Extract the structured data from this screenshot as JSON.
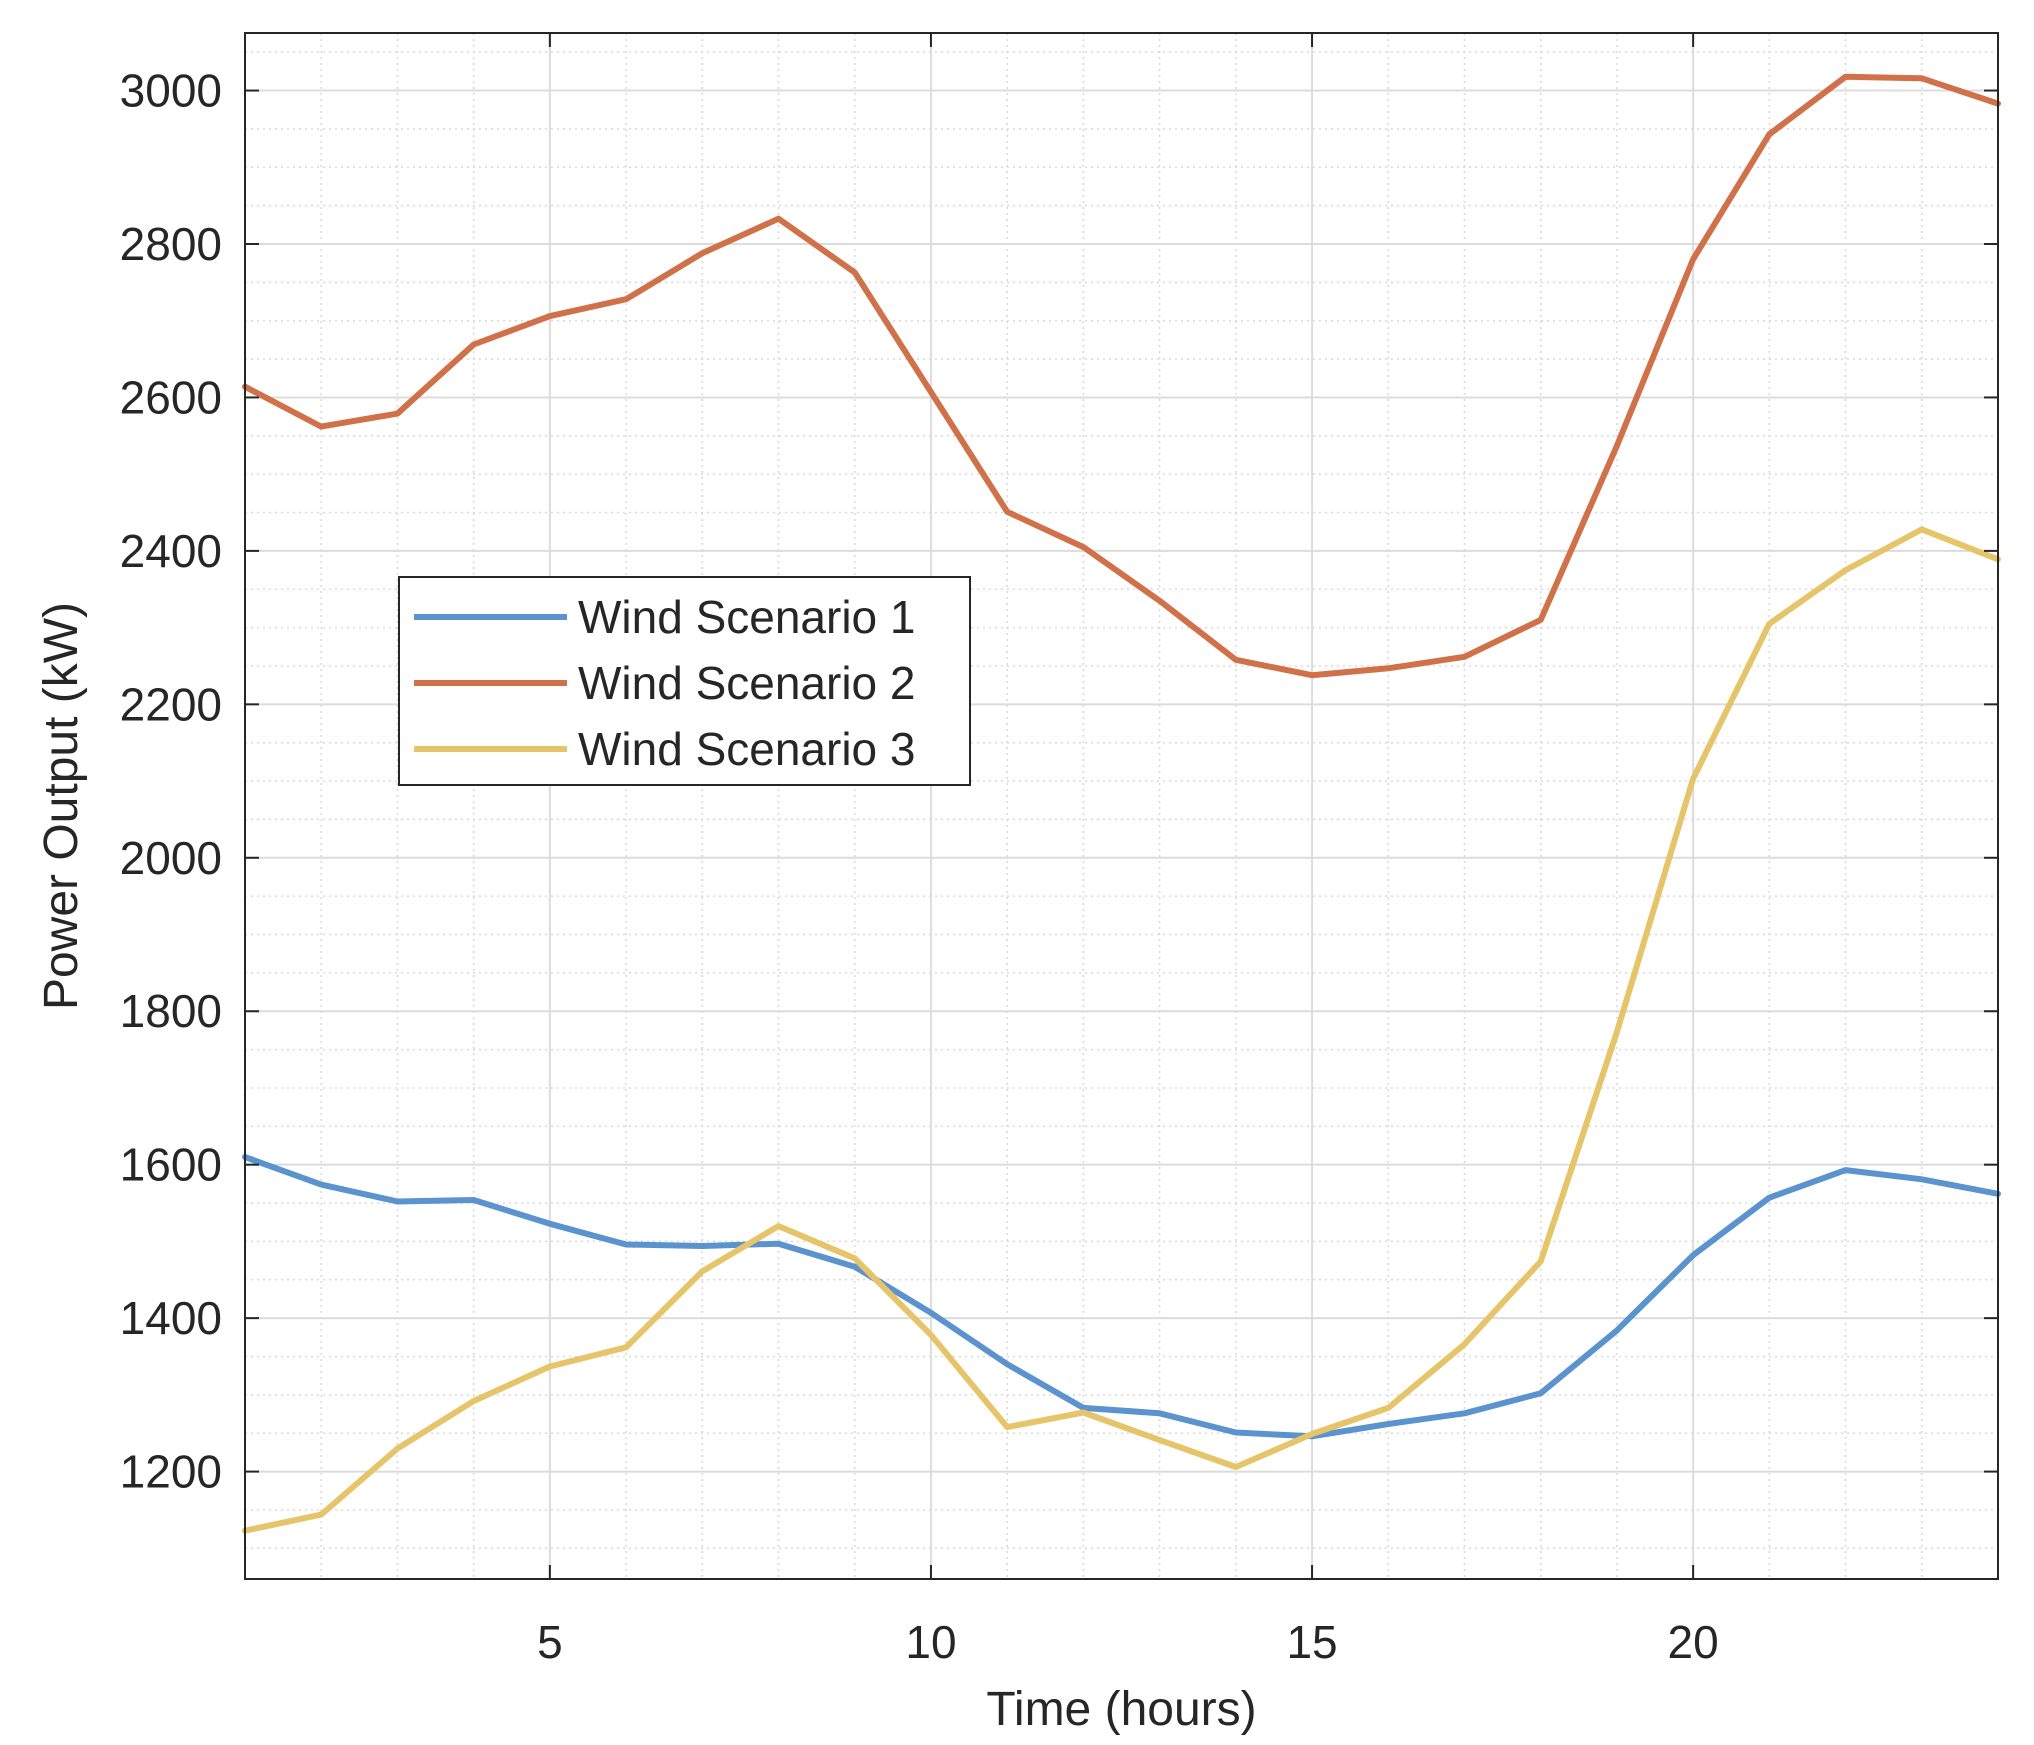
{
  "chart_data": {
    "type": "line",
    "title": "",
    "xlabel": "Time (hours)",
    "ylabel": "Power Output (kW)",
    "xlim": [
      1,
      24
    ],
    "ylim": [
      1060,
      3075
    ],
    "xticks": [
      5,
      10,
      15,
      20
    ],
    "yticks": [
      1200,
      1400,
      1600,
      1800,
      2000,
      2200,
      2400,
      2600,
      2800,
      3000
    ],
    "grid": true,
    "minor_grid": true,
    "legend_position": "middle-left",
    "x": [
      1,
      2,
      3,
      4,
      5,
      6,
      7,
      8,
      9,
      10,
      11,
      12,
      13,
      14,
      15,
      16,
      17,
      18,
      19,
      20,
      21,
      22,
      23,
      24
    ],
    "series": [
      {
        "name": "Wind Scenario 1",
        "color": "#5B93CF",
        "values": [
          1610,
          1574,
          1552,
          1554,
          1523,
          1496,
          1494,
          1497,
          1467,
          1407,
          1340,
          1283,
          1276,
          1251,
          1246,
          1262,
          1276,
          1302,
          1384,
          1482,
          1557,
          1593,
          1581,
          1562
        ]
      },
      {
        "name": "Wind Scenario 2",
        "color": "#D0714A",
        "values": [
          2614,
          2562,
          2579,
          2669,
          2706,
          2728,
          2788,
          2833,
          2763,
          2607,
          2451,
          2405,
          2335,
          2258,
          2238,
          2247,
          2262,
          2310,
          2537,
          2780,
          2943,
          3018,
          3016,
          2983
        ]
      },
      {
        "name": "Wind Scenario 3",
        "color": "#E6C46A",
        "values": [
          1123,
          1144,
          1230,
          1292,
          1337,
          1362,
          1461,
          1520,
          1478,
          1378,
          1258,
          1277,
          1241,
          1206,
          1249,
          1283,
          1366,
          1474,
          1773,
          2103,
          2305,
          2375,
          2428,
          2389
        ]
      }
    ]
  }
}
